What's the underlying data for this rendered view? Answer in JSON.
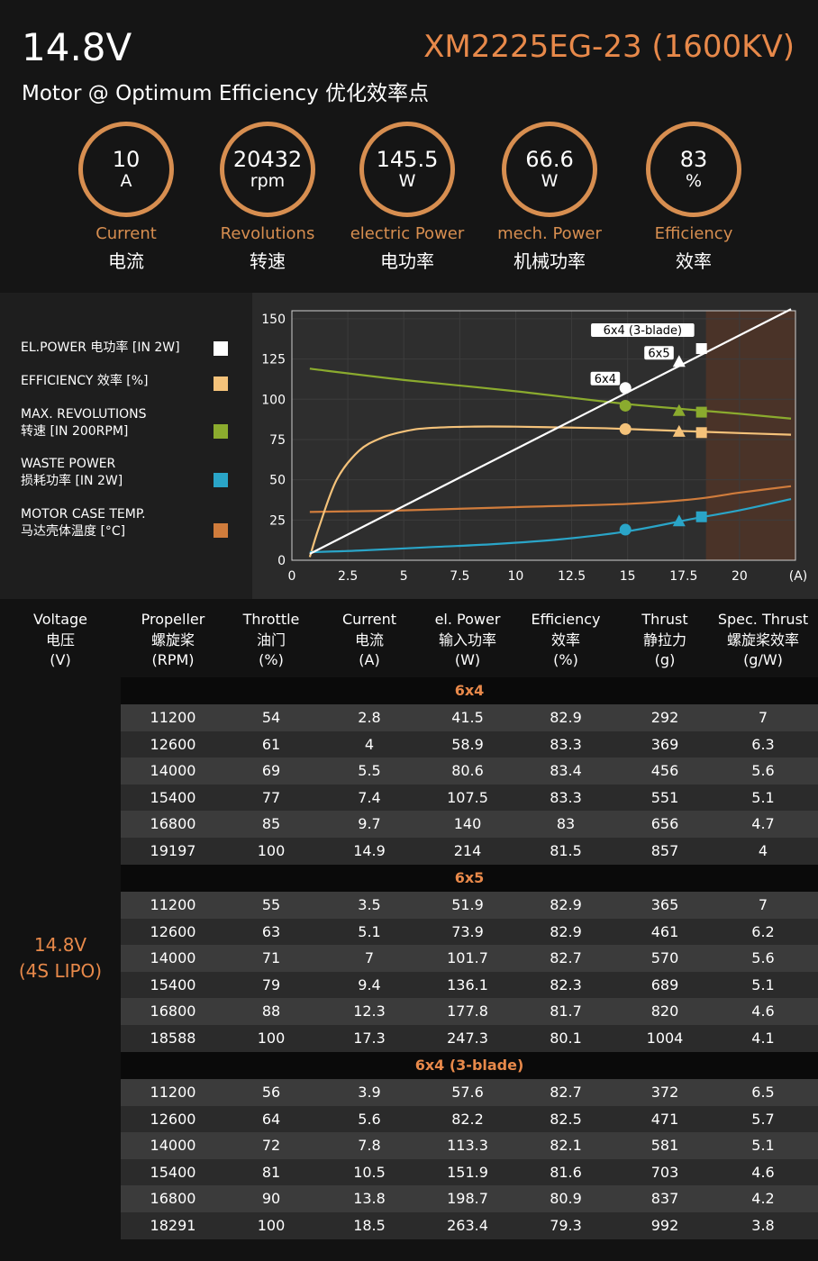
{
  "header": {
    "voltage": "14.8V",
    "model": "XM2225EG-23 (1600KV)",
    "subtitle": "Motor @ Optimum Efficiency  优化效率点"
  },
  "stats": [
    {
      "value": "10",
      "unit": "A",
      "label_en": "Current",
      "label_cn": "电流"
    },
    {
      "value": "20432",
      "unit": "rpm",
      "label_en": "Revolutions",
      "label_cn": "转速"
    },
    {
      "value": "145.5",
      "unit": "W",
      "label_en": "electric Power",
      "label_cn": "电功率"
    },
    {
      "value": "66.6",
      "unit": "W",
      "label_en": "mech. Power",
      "label_cn": "机械功率"
    },
    {
      "value": "83",
      "unit": "%",
      "label_en": "Efficiency",
      "label_cn": "效率"
    }
  ],
  "legend": [
    {
      "line1": "EL.POWER 电功率 [IN 2W]",
      "line2": "",
      "color": "#ffffff"
    },
    {
      "line1": "EFFICIENCY 效率 [%]",
      "line2": "",
      "color": "#f4c27a"
    },
    {
      "line1": "MAX. REVOLUTIONS",
      "line2": "转速 [IN 200RPM]",
      "color": "#8bab2e"
    },
    {
      "line1": "WASTE POWER",
      "line2": "损耗功率 [IN 2W]",
      "color": "#2aa5c8"
    },
    {
      "line1": "MOTOR CASE TEMP.",
      "line2": "马达壳体温度 [°C]",
      "color": "#d07c3c"
    }
  ],
  "chart_data": {
    "type": "line",
    "xlabel": "(A)",
    "xlim": [
      0,
      22.5
    ],
    "ylim": [
      0,
      155
    ],
    "x_ticks": [
      0,
      2.5,
      5,
      7.5,
      10,
      12.5,
      15,
      17.5,
      20
    ],
    "x_tick_labels": [
      "0",
      "2.5",
      "5",
      "7.5",
      "10",
      "12.5",
      "15",
      "17.5",
      "20"
    ],
    "y_ticks": [
      0,
      25,
      50,
      75,
      100,
      125,
      150
    ],
    "y_tick_labels": [
      "0",
      "25",
      "50",
      "75",
      "100",
      "125",
      "150"
    ],
    "shaded_region": [
      18.5,
      22.5
    ],
    "series": [
      {
        "name": "EL.POWER",
        "color": "#ffffff",
        "x": [
          0.8,
          22.3
        ],
        "y": [
          4,
          156
        ]
      },
      {
        "name": "EFFICIENCY",
        "color": "#f4c27a",
        "x": [
          0.8,
          1.2,
          2,
          3,
          4,
          5,
          6,
          8,
          10,
          12,
          14,
          16,
          18,
          20,
          22.3
        ],
        "y": [
          2,
          20,
          50,
          68,
          76,
          80,
          82,
          83,
          83,
          82.5,
          82,
          81,
          80,
          79,
          78
        ]
      },
      {
        "name": "MAX. REVOLUTIONS",
        "color": "#8bab2e",
        "x": [
          0.8,
          5,
          10,
          15,
          20,
          22.3
        ],
        "y": [
          119,
          112,
          105,
          97,
          91,
          88
        ]
      },
      {
        "name": "WASTE POWER",
        "color": "#2aa5c8",
        "x": [
          0.8,
          3,
          6,
          9,
          12,
          15,
          18,
          20,
          22.3
        ],
        "y": [
          5,
          6,
          8,
          10,
          13,
          18,
          26,
          31,
          38
        ]
      },
      {
        "name": "MOTOR CASE TEMP.",
        "color": "#d07c3c",
        "x": [
          0.8,
          5,
          10,
          15,
          18,
          20,
          22.3
        ],
        "y": [
          30,
          31,
          33,
          35,
          38,
          42,
          46
        ]
      }
    ],
    "markers": [
      {
        "label": "6x4",
        "x": 14.9,
        "el_power": 107,
        "efficiency": 81.5,
        "revolutions": 96,
        "waste": 19,
        "shape": "circle"
      },
      {
        "label": "6x5",
        "x": 17.3,
        "el_power": 123.5,
        "efficiency": 80.1,
        "revolutions": 93,
        "waste": 24.5,
        "shape": "triangle"
      },
      {
        "label": "6x4 (3-blade)",
        "x": 18.3,
        "el_power": 131.5,
        "efficiency": 79.3,
        "revolutions": 92,
        "waste": 27,
        "shape": "square"
      }
    ]
  },
  "table": {
    "headers": [
      [
        "Voltage",
        "电压",
        "(V)"
      ],
      [
        "Propeller",
        "螺旋桨",
        "(RPM)"
      ],
      [
        "Throttle",
        "油门",
        "(%)"
      ],
      [
        "Current",
        "电流",
        "(A)"
      ],
      [
        "el. Power",
        "输入功率",
        "(W)"
      ],
      [
        "Efficiency",
        "效率",
        "(%)"
      ],
      [
        "Thrust",
        "静拉力",
        "(g)"
      ],
      [
        "Spec. Thrust",
        "螺旋桨效率",
        "(g/W)"
      ]
    ],
    "voltage_label": [
      "14.8V",
      "(4S LIPO)"
    ],
    "groups": [
      {
        "name": "6x4",
        "rows": [
          [
            "11200",
            "54",
            "2.8",
            "41.5",
            "82.9",
            "292",
            "7"
          ],
          [
            "12600",
            "61",
            "4",
            "58.9",
            "83.3",
            "369",
            "6.3"
          ],
          [
            "14000",
            "69",
            "5.5",
            "80.6",
            "83.4",
            "456",
            "5.6"
          ],
          [
            "15400",
            "77",
            "7.4",
            "107.5",
            "83.3",
            "551",
            "5.1"
          ],
          [
            "16800",
            "85",
            "9.7",
            "140",
            "83",
            "656",
            "4.7"
          ],
          [
            "19197",
            "100",
            "14.9",
            "214",
            "81.5",
            "857",
            "4"
          ]
        ]
      },
      {
        "name": "6x5",
        "rows": [
          [
            "11200",
            "55",
            "3.5",
            "51.9",
            "82.9",
            "365",
            "7"
          ],
          [
            "12600",
            "63",
            "5.1",
            "73.9",
            "82.9",
            "461",
            "6.2"
          ],
          [
            "14000",
            "71",
            "7",
            "101.7",
            "82.7",
            "570",
            "5.6"
          ],
          [
            "15400",
            "79",
            "9.4",
            "136.1",
            "82.3",
            "689",
            "5.1"
          ],
          [
            "16800",
            "88",
            "12.3",
            "177.8",
            "81.7",
            "820",
            "4.6"
          ],
          [
            "18588",
            "100",
            "17.3",
            "247.3",
            "80.1",
            "1004",
            "4.1"
          ]
        ]
      },
      {
        "name": "6x4 (3-blade)",
        "rows": [
          [
            "11200",
            "56",
            "3.9",
            "57.6",
            "82.7",
            "372",
            "6.5"
          ],
          [
            "12600",
            "64",
            "5.6",
            "82.2",
            "82.5",
            "471",
            "5.7"
          ],
          [
            "14000",
            "72",
            "7.8",
            "113.3",
            "82.1",
            "581",
            "5.1"
          ],
          [
            "15400",
            "81",
            "10.5",
            "151.9",
            "81.6",
            "703",
            "4.6"
          ],
          [
            "16800",
            "90",
            "13.8",
            "198.7",
            "80.9",
            "837",
            "4.2"
          ],
          [
            "18291",
            "100",
            "18.5",
            "263.4",
            "79.3",
            "992",
            "3.8"
          ]
        ]
      }
    ]
  }
}
